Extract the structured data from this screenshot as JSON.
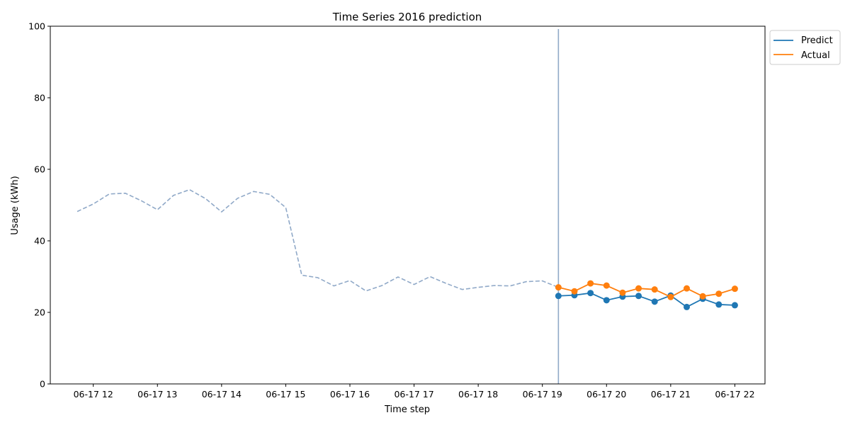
{
  "chart_data": {
    "type": "line",
    "title": "Time Series 2016 prediction",
    "xlabel": "Time step",
    "ylabel": "Usage (kWh)",
    "ylim": [
      0,
      100
    ],
    "yticks": [
      0,
      20,
      40,
      60,
      80,
      100
    ],
    "xlim_hours": [
      11.33,
      22.47
    ],
    "xticks": [
      {
        "hour": 12,
        "label": "06-17 12"
      },
      {
        "hour": 13,
        "label": "06-17 13"
      },
      {
        "hour": 14,
        "label": "06-17 14"
      },
      {
        "hour": 15,
        "label": "06-17 15"
      },
      {
        "hour": 16,
        "label": "06-17 16"
      },
      {
        "hour": 17,
        "label": "06-17 17"
      },
      {
        "hour": 18,
        "label": "06-17 18"
      },
      {
        "hour": 19,
        "label": "06-17 19"
      },
      {
        "hour": 20,
        "label": "06-17 20"
      },
      {
        "hour": 21,
        "label": "06-17 21"
      },
      {
        "hour": 22,
        "label": "06-17 22"
      }
    ],
    "history": {
      "style": "dashed",
      "color": "#90a9c8",
      "x_start_hour": 11.75,
      "x_step_hours": 0.25,
      "values": [
        48.2,
        50.3,
        53.1,
        53.3,
        51.2,
        48.7,
        52.7,
        54.3,
        51.8,
        48.1,
        51.9,
        53.8,
        53.0,
        49.3,
        30.4,
        29.7,
        27.4,
        28.9,
        26.0,
        27.5,
        29.9,
        27.8,
        30.0,
        28.1,
        26.4,
        27.0,
        27.5,
        27.4,
        28.6,
        28.8,
        27.0
      ]
    },
    "forecast_start_hour": 19.25,
    "forecast_line_color": "#90a9c8",
    "series": [
      {
        "name": "Predict",
        "color": "#1f77b4",
        "x_start_hour": 19.25,
        "x_step_hours": 0.25,
        "values": [
          24.6,
          24.8,
          25.4,
          23.4,
          24.4,
          24.6,
          23.0,
          24.7,
          21.5,
          23.8,
          22.2,
          22.0
        ]
      },
      {
        "name": "Actual",
        "color": "#ff7f0e",
        "x_start_hour": 19.25,
        "x_step_hours": 0.25,
        "values": [
          27.0,
          25.9,
          28.1,
          27.5,
          25.5,
          26.7,
          26.4,
          24.3,
          26.7,
          24.5,
          25.2,
          26.6
        ]
      }
    ],
    "legend_position": "upper-right-outside",
    "grid": false
  }
}
